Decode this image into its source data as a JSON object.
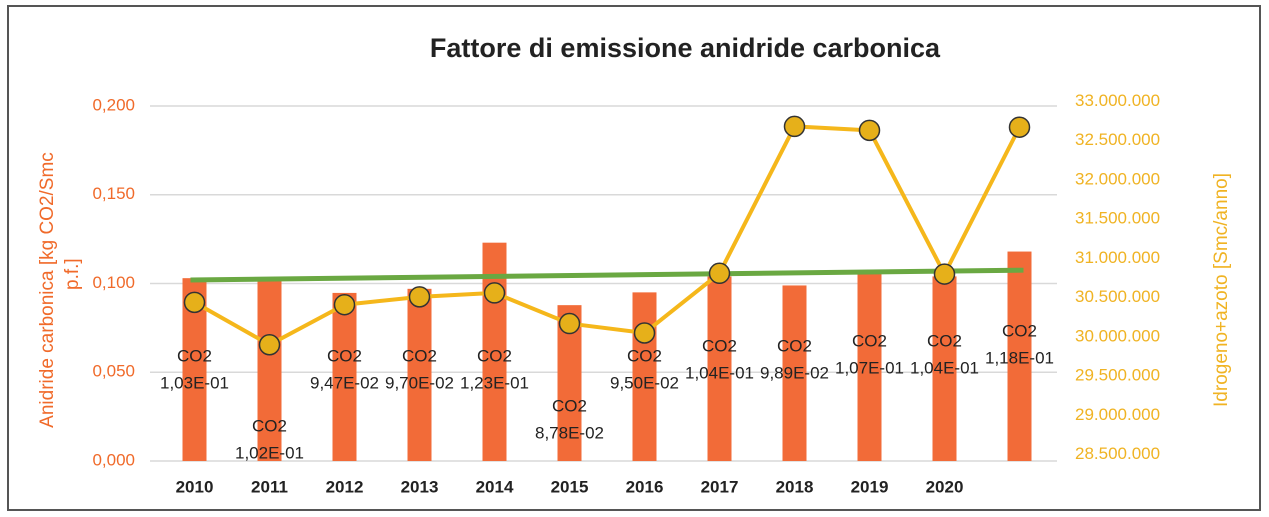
{
  "chart_data": {
    "type": "bar",
    "title": "Fattore di emissione anidride carbonica",
    "ylabel": [
      "Anidride carbonica  [kg CO2/Smc",
      "p.f.]"
    ],
    "y2label": "Idrogeno+azoto   [Smc/anno]",
    "categories": [
      "2010",
      "2011",
      "2012",
      "2013",
      "2014",
      "2015",
      "2016",
      "2017",
      "2018",
      "2019",
      "2020",
      null
    ],
    "series": [
      {
        "name": "CO2",
        "type": "bar",
        "color": "#f26b38",
        "values": [
          0.103,
          0.102,
          0.0947,
          0.097,
          0.123,
          0.0878,
          0.095,
          0.104,
          0.0989,
          0.107,
          0.104,
          0.118
        ],
        "value_labels": [
          "1,03E-01",
          "1,02E-01",
          "9,47E-02",
          "9,70E-02",
          "1,23E-01",
          "8,78E-02",
          "9,50E-02",
          "1,04E-01",
          "9,89E-02",
          "1,07E-01",
          "1,04E-01",
          "1,18E-01"
        ]
      },
      {
        "type": "line",
        "axis": "y2",
        "color": "#f5b71b",
        "marker_color": "#e6b01a",
        "values": [
          30440000,
          29900000,
          30410000,
          30510000,
          30560000,
          30170000,
          30050000,
          30810000,
          32680000,
          32630000,
          30800000,
          32670000
        ]
      }
    ],
    "trendline": {
      "color": "#6aa842",
      "values": [
        0.102,
        0.1075
      ]
    },
    "ylim": [
      0,
      0.2
    ],
    "yticks": [
      {
        "value": 0,
        "label": "0,000"
      },
      {
        "value": 0.05,
        "label": "0,050"
      },
      {
        "value": 0.1,
        "label": "0,100"
      },
      {
        "value": 0.15,
        "label": "0,150"
      },
      {
        "value": 0.2,
        "label": "0,200"
      }
    ],
    "y2lim": [
      28420000,
      32940000
    ],
    "y2ticks": [
      {
        "value": 28500000,
        "label": "28.500.000"
      },
      {
        "value": 29000000,
        "label": "29.000.000"
      },
      {
        "value": 29500000,
        "label": "29.500.000"
      },
      {
        "value": 30000000,
        "label": "30.000.000"
      },
      {
        "value": 30500000,
        "label": "30.500.000"
      },
      {
        "value": 31000000,
        "label": "31.000.000"
      },
      {
        "value": 31500000,
        "label": "31.500.000"
      },
      {
        "value": 32000000,
        "label": "32.000.000"
      },
      {
        "value": 32500000,
        "label": "32.500.000"
      },
      {
        "value": 33000000,
        "label": "33.000.000"
      }
    ],
    "grid": true
  }
}
